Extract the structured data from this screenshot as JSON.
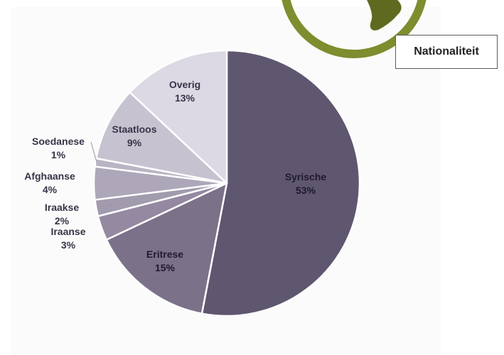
{
  "chart_title": "Nationaliteit",
  "colors": {
    "logo_ring": "#7e8d2e",
    "logo_fill": "#5f6a20",
    "label_dark": "#3a3348",
    "label_light": "#1e1a2a"
  },
  "chart_data": {
    "type": "pie",
    "title": "Nationaliteit",
    "legend": "none",
    "slices": [
      {
        "label": "Syrische",
        "pct_text": "53%",
        "value": 53,
        "color": "#5f5670",
        "text_color": "#1f1a2c"
      },
      {
        "label": "Eritrese",
        "pct_text": "15%",
        "value": 15,
        "color": "#7b7189",
        "text_color": "#1f1a2c"
      },
      {
        "label": "Iraanse",
        "pct_text": "3%",
        "value": 3,
        "color": "#9489a1",
        "text_color": "#3a3348"
      },
      {
        "label": "Iraakse",
        "pct_text": "2%",
        "value": 2,
        "color": "#a29bae",
        "text_color": "#3a3348"
      },
      {
        "label": "Afghaanse",
        "pct_text": "4%",
        "value": 4,
        "color": "#aea7b9",
        "text_color": "#3a3348"
      },
      {
        "label": "Soedanese",
        "pct_text": "1%",
        "value": 1,
        "color": "#bab4c4",
        "text_color": "#3a3348"
      },
      {
        "label": "Staatloos",
        "pct_text": "9%",
        "value": 9,
        "color": "#c7c2d0",
        "text_color": "#3a3348"
      },
      {
        "label": "Overig",
        "pct_text": "13%",
        "value": 13,
        "color": "#dcd9e4",
        "text_color": "#3a3348"
      }
    ]
  }
}
